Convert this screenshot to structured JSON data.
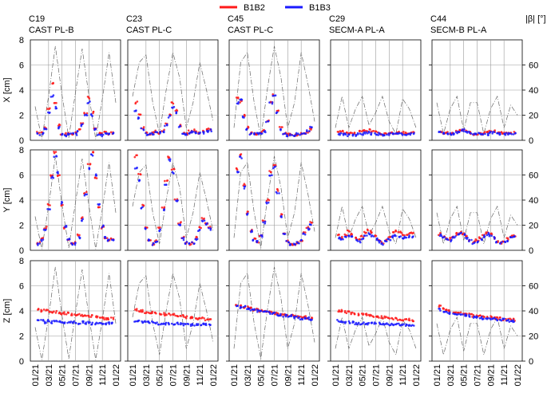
{
  "legend": [
    {
      "name": "B1B2",
      "color": "#ff1a1a"
    },
    {
      "name": "B1B3",
      "color": "#1a1aff"
    }
  ],
  "right_axis_label": "|β| [°]",
  "chart_data": {
    "type": "scatter",
    "grid": true,
    "legend_position": "top-center",
    "columns": [
      {
        "id": "C19",
        "subtitle": "CAST PL-B"
      },
      {
        "id": "C23",
        "subtitle": "CAST PL-C"
      },
      {
        "id": "C45",
        "subtitle": "CAST PL-C"
      },
      {
        "id": "C29",
        "subtitle": "SECM-A PL-A"
      },
      {
        "id": "C44",
        "subtitle": "SECM-B PL-A"
      }
    ],
    "rows": [
      {
        "ylabel": "X [cm]",
        "ylim": [
          0,
          8
        ]
      },
      {
        "ylabel": "Y [cm]",
        "ylim": [
          0,
          8
        ]
      },
      {
        "ylabel": "Z [cm]",
        "ylim": [
          0,
          8
        ]
      }
    ],
    "left_ticks": [
      "0",
      "2",
      "4",
      "6",
      "8"
    ],
    "right_ticks": [
      "0",
      "20",
      "40",
      "60"
    ],
    "beta_lim": [
      0,
      80
    ],
    "x_ticks": [
      "01/21",
      "03/21",
      "05/21",
      "07/21",
      "09/21",
      "11/21",
      "01/22"
    ],
    "beta_series": {
      "months": [
        0,
        1,
        2,
        3,
        4,
        5,
        6,
        7,
        8,
        9,
        10,
        11,
        12
      ],
      "C19": [
        27,
        1,
        35,
        75,
        36,
        2,
        38,
        73,
        36,
        1,
        33,
        70,
        30
      ],
      "C23": [
        35,
        62,
        68,
        30,
        5,
        40,
        70,
        50,
        10,
        30,
        62,
        40,
        15
      ],
      "C45": [
        10,
        62,
        70,
        30,
        2,
        42,
        75,
        50,
        10,
        30,
        70,
        45,
        15
      ],
      "C29": [
        10,
        35,
        10,
        25,
        35,
        12,
        22,
        35,
        15,
        5,
        33,
        25,
        10
      ],
      "C44": [
        30,
        5,
        25,
        35,
        8,
        30,
        30,
        5,
        25,
        35,
        10,
        28,
        20
      ]
    },
    "series_points": {
      "months": [
        0.5,
        1.0,
        1.5,
        2.0,
        2.5,
        3.0,
        3.5,
        4.0,
        4.5,
        5.0,
        5.5,
        6.0,
        6.5,
        7.0,
        7.5,
        8.0,
        8.5,
        9.0,
        9.5,
        10.0,
        10.5,
        11.0,
        11.5
      ],
      "X": {
        "C19": {
          "B1B2": [
            0.6,
            0.6,
            1.0,
            2.5,
            4.5,
            3.0,
            1.2,
            0.5,
            0.5,
            0.6,
            0.5,
            0.6,
            0.9,
            1.3,
            2.2,
            3.4,
            2.2,
            1.0,
            0.6,
            0.5,
            0.6,
            0.5,
            0.6
          ],
          "B1B3": [
            0.5,
            0.5,
            0.9,
            2.2,
            3.5,
            2.6,
            1.0,
            0.5,
            0.4,
            0.5,
            0.5,
            0.5,
            0.8,
            1.2,
            2.0,
            3.0,
            2.0,
            0.9,
            0.5,
            0.4,
            0.5,
            0.5,
            0.5
          ]
        },
        "C23": {
          "B1B2": [
            3.0,
            2.0,
            1.0,
            0.6,
            0.5,
            0.6,
            0.7,
            0.6,
            0.8,
            1.3,
            2.0,
            3.0,
            2.4,
            1.2,
            0.6,
            0.5,
            0.7,
            0.8,
            0.7,
            0.6,
            0.7,
            0.8,
            0.9
          ],
          "B1B3": [
            2.4,
            1.8,
            0.9,
            0.5,
            0.5,
            0.5,
            0.6,
            0.6,
            0.7,
            1.2,
            1.9,
            2.6,
            2.2,
            1.1,
            0.5,
            0.5,
            0.6,
            0.7,
            0.6,
            0.6,
            0.6,
            0.7,
            0.8
          ]
        },
        "C45": {
          "B1B2": [
            3.4,
            3.1,
            2.0,
            1.0,
            0.6,
            0.5,
            0.5,
            0.6,
            0.8,
            1.5,
            3.0,
            3.6,
            2.4,
            1.0,
            0.6,
            0.5,
            0.5,
            0.4,
            0.4,
            0.5,
            0.6,
            0.7,
            0.9
          ],
          "B1B3": [
            3.0,
            3.2,
            1.9,
            0.9,
            0.5,
            0.5,
            0.5,
            0.5,
            0.7,
            1.5,
            3.0,
            3.5,
            2.2,
            0.9,
            0.5,
            0.4,
            0.4,
            0.4,
            0.5,
            0.5,
            0.6,
            0.8,
            1.0
          ]
        },
        "C29": {
          "B1B2": [
            0.7,
            0.7,
            0.6,
            0.5,
            0.6,
            0.6,
            0.7,
            0.8,
            0.8,
            0.8,
            0.7,
            0.7,
            0.6,
            0.5,
            0.5,
            0.6,
            0.6,
            0.6,
            0.6,
            0.6,
            0.6,
            0.6,
            0.6
          ],
          "B1B3": [
            0.5,
            0.5,
            0.5,
            0.4,
            0.4,
            0.4,
            0.5,
            0.5,
            0.6,
            0.6,
            0.5,
            0.5,
            0.5,
            0.4,
            0.4,
            0.5,
            0.5,
            0.5,
            0.5,
            0.5,
            0.5,
            0.5,
            0.5
          ]
        },
        "C44": {
          "B1B2": [
            0.7,
            0.6,
            0.6,
            0.5,
            0.6,
            0.7,
            0.8,
            0.8,
            0.7,
            0.6,
            0.5,
            0.5,
            0.5,
            0.6,
            0.6,
            0.7,
            0.7,
            0.6,
            0.6,
            0.6,
            0.6,
            0.6,
            0.6
          ],
          "B1B3": [
            0.6,
            0.6,
            0.5,
            0.5,
            0.5,
            0.6,
            0.7,
            0.8,
            0.7,
            0.6,
            0.5,
            0.5,
            0.5,
            0.5,
            0.5,
            0.6,
            0.6,
            0.6,
            0.5,
            0.5,
            0.5,
            0.5,
            0.5
          ]
        }
      },
      "Y": {
        "C19": {
          "B1B2": [
            0.6,
            0.9,
            1.8,
            3.6,
            6.0,
            7.8,
            6.0,
            3.6,
            1.8,
            0.9,
            0.5,
            0.6,
            1.2,
            2.6,
            4.6,
            6.8,
            7.8,
            5.8,
            3.5,
            1.8,
            1.0,
            0.8,
            0.9
          ],
          "B1B3": [
            0.5,
            0.8,
            1.6,
            3.2,
            5.8,
            7.5,
            6.2,
            3.8,
            1.9,
            0.9,
            0.5,
            0.5,
            1.0,
            2.4,
            4.4,
            6.5,
            7.6,
            6.0,
            3.6,
            1.9,
            1.0,
            0.8,
            0.8
          ]
        },
        "C23": {
          "B1B2": [
            7.5,
            6.0,
            3.6,
            1.8,
            0.8,
            0.5,
            0.8,
            1.8,
            3.4,
            5.5,
            7.4,
            6.4,
            4.0,
            2.2,
            1.0,
            0.6,
            0.5,
            0.6,
            1.0,
            1.8,
            2.5,
            2.2,
            1.8
          ],
          "B1B3": [
            6.5,
            5.6,
            3.4,
            1.7,
            0.8,
            0.5,
            0.7,
            1.6,
            3.2,
            5.2,
            7.2,
            6.2,
            3.9,
            2.0,
            0.9,
            0.6,
            0.5,
            0.6,
            0.9,
            1.6,
            2.3,
            2.1,
            1.7
          ]
        },
        "C45": {
          "B1B2": [
            6.5,
            7.6,
            5.2,
            3.0,
            1.6,
            0.9,
            0.7,
            1.2,
            2.4,
            4.0,
            6.3,
            6.8,
            4.8,
            2.8,
            1.4,
            0.7,
            0.5,
            0.5,
            0.6,
            0.8,
            1.4,
            1.8,
            2.2
          ],
          "B1B3": [
            6.2,
            7.4,
            5.0,
            2.9,
            1.5,
            0.8,
            0.7,
            1.1,
            2.2,
            3.8,
            6.0,
            6.6,
            4.6,
            2.7,
            1.3,
            0.7,
            0.5,
            0.5,
            0.6,
            0.8,
            1.3,
            1.7,
            2.1
          ]
        },
        "C29": {
          "B1B2": [
            1.2,
            1.0,
            1.2,
            1.5,
            1.3,
            1.0,
            0.9,
            1.1,
            1.4,
            1.6,
            1.4,
            1.1,
            0.8,
            0.6,
            0.8,
            1.1,
            1.4,
            1.5,
            1.4,
            1.3,
            1.2,
            1.3,
            1.4
          ],
          "B1B3": [
            1.0,
            0.8,
            1.0,
            1.2,
            1.1,
            0.8,
            0.7,
            0.9,
            1.1,
            1.3,
            1.1,
            0.9,
            0.7,
            0.5,
            0.7,
            0.9,
            1.1,
            1.2,
            1.1,
            1.0,
            1.0,
            1.1,
            1.1
          ]
        },
        "C44": {
          "B1B2": [
            1.3,
            1.1,
            0.9,
            0.9,
            1.1,
            1.3,
            1.4,
            1.3,
            1.1,
            0.8,
            0.7,
            0.8,
            1.0,
            1.2,
            1.4,
            1.3,
            1.0,
            0.7,
            0.6,
            0.7,
            0.9,
            1.1,
            1.2
          ],
          "B1B3": [
            1.2,
            1.0,
            0.9,
            0.8,
            1.0,
            1.2,
            1.3,
            1.3,
            1.0,
            0.8,
            0.6,
            0.7,
            0.9,
            1.1,
            1.3,
            1.2,
            1.0,
            0.7,
            0.6,
            0.7,
            0.8,
            1.0,
            1.1
          ]
        }
      },
      "Z": {
        "C19": {
          "B1B2": [
            4.1,
            4.0,
            4.1,
            4.0,
            3.9,
            3.9,
            3.9,
            3.8,
            3.8,
            3.8,
            3.7,
            3.7,
            3.7,
            3.6,
            3.6,
            3.6,
            3.6,
            3.5,
            3.5,
            3.5,
            3.4,
            3.4,
            3.4
          ],
          "B1B3": [
            3.2,
            3.2,
            3.1,
            3.2,
            3.1,
            3.2,
            3.1,
            3.1,
            3.1,
            3.1,
            3.1,
            3.1,
            3.0,
            3.1,
            3.0,
            3.1,
            3.0,
            3.0,
            3.0,
            3.0,
            3.0,
            3.0,
            3.0
          ]
        },
        "C23": {
          "B1B2": [
            4.1,
            4.0,
            4.0,
            3.9,
            3.9,
            3.9,
            3.8,
            3.8,
            3.8,
            3.7,
            3.7,
            3.7,
            3.6,
            3.6,
            3.6,
            3.5,
            3.5,
            3.5,
            3.4,
            3.4,
            3.4,
            3.3,
            3.3
          ],
          "B1B3": [
            3.2,
            3.2,
            3.1,
            3.1,
            3.1,
            3.1,
            3.0,
            3.0,
            3.0,
            3.0,
            3.0,
            3.0,
            3.0,
            3.0,
            2.9,
            2.9,
            2.9,
            2.9,
            2.9,
            2.9,
            2.9,
            2.9,
            2.9
          ]
        },
        "C45": {
          "B1B2": [
            4.5,
            4.4,
            4.3,
            4.3,
            4.2,
            4.1,
            4.1,
            4.0,
            4.0,
            3.9,
            3.9,
            3.8,
            3.8,
            3.7,
            3.7,
            3.7,
            3.6,
            3.6,
            3.5,
            3.5,
            3.5,
            3.4,
            3.4
          ],
          "B1B3": [
            4.4,
            4.3,
            4.3,
            4.2,
            4.1,
            4.1,
            4.0,
            4.0,
            3.9,
            3.9,
            3.8,
            3.8,
            3.7,
            3.7,
            3.6,
            3.6,
            3.6,
            3.5,
            3.5,
            3.4,
            3.4,
            3.4,
            3.3
          ]
        },
        "C29": {
          "B1B2": [
            4.0,
            4.0,
            3.9,
            3.9,
            3.8,
            3.8,
            3.7,
            3.7,
            3.7,
            3.6,
            3.6,
            3.6,
            3.5,
            3.5,
            3.5,
            3.4,
            3.4,
            3.4,
            3.3,
            3.3,
            3.3,
            3.3,
            3.2
          ],
          "B1B3": [
            3.2,
            3.1,
            3.1,
            3.1,
            3.1,
            3.0,
            3.0,
            3.0,
            3.0,
            3.0,
            3.0,
            3.0,
            3.0,
            3.0,
            3.0,
            2.9,
            2.9,
            2.9,
            2.9,
            2.9,
            2.9,
            2.9,
            2.9
          ]
        },
        "C44": {
          "B1B2": [
            4.4,
            4.2,
            4.1,
            4.0,
            3.9,
            3.8,
            3.8,
            3.8,
            3.7,
            3.7,
            3.6,
            3.6,
            3.6,
            3.5,
            3.5,
            3.5,
            3.4,
            3.4,
            3.4,
            3.3,
            3.3,
            3.3,
            3.3
          ],
          "B1B3": [
            4.1,
            4.0,
            3.9,
            3.8,
            3.8,
            3.7,
            3.7,
            3.7,
            3.6,
            3.6,
            3.5,
            3.5,
            3.5,
            3.4,
            3.4,
            3.4,
            3.4,
            3.3,
            3.3,
            3.3,
            3.2,
            3.2,
            3.2
          ]
        }
      }
    }
  }
}
